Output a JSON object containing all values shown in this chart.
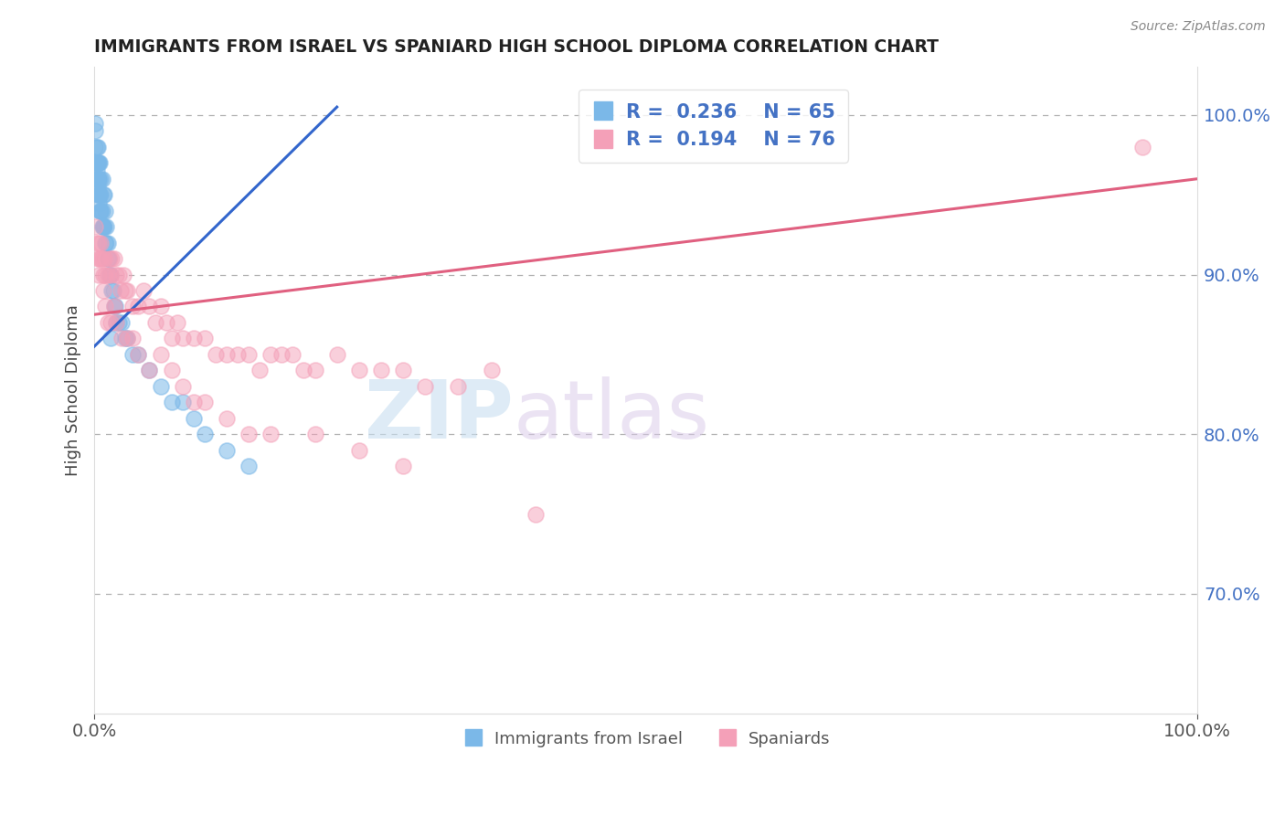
{
  "title": "IMMIGRANTS FROM ISRAEL VS SPANIARD HIGH SCHOOL DIPLOMA CORRELATION CHART",
  "source_text": "Source: ZipAtlas.com",
  "ylabel": "High School Diploma",
  "xlabel": "",
  "legend_label1": "Immigrants from Israel",
  "legend_label2": "Spaniards",
  "R1": 0.236,
  "N1": 65,
  "R2": 0.194,
  "N2": 76,
  "color_blue": "#7bb8e8",
  "color_pink": "#f4a0b8",
  "color_blue_line": "#3366cc",
  "color_pink_line": "#e06080",
  "watermark_zip": "ZIP",
  "watermark_atlas": "atlas",
  "xlim": [
    0.0,
    1.0
  ],
  "ylim": [
    0.625,
    1.03
  ],
  "right_yticks": [
    0.7,
    0.8,
    0.9,
    1.0
  ],
  "right_yticklabels": [
    "70.0%",
    "80.0%",
    "90.0%",
    "100.0%"
  ],
  "xticks": [
    0.0,
    1.0
  ],
  "xticklabels": [
    "0.0%",
    "100.0%"
  ],
  "blue_x": [
    0.001,
    0.001,
    0.001,
    0.002,
    0.002,
    0.002,
    0.003,
    0.003,
    0.003,
    0.003,
    0.004,
    0.004,
    0.004,
    0.005,
    0.005,
    0.005,
    0.006,
    0.006,
    0.006,
    0.007,
    0.007,
    0.007,
    0.008,
    0.008,
    0.009,
    0.009,
    0.01,
    0.01,
    0.011,
    0.011,
    0.012,
    0.013,
    0.014,
    0.015,
    0.016,
    0.017,
    0.018,
    0.019,
    0.02,
    0.022,
    0.025,
    0.028,
    0.03,
    0.035,
    0.04,
    0.05,
    0.06,
    0.07,
    0.08,
    0.09,
    0.1,
    0.12,
    0.14,
    0.015,
    0.012,
    0.008,
    0.006,
    0.004,
    0.003,
    0.002,
    0.001,
    0.001,
    0.002,
    0.003,
    0.004
  ],
  "blue_y": [
    0.96,
    0.97,
    0.98,
    0.96,
    0.97,
    0.98,
    0.95,
    0.96,
    0.97,
    0.98,
    0.95,
    0.96,
    0.97,
    0.94,
    0.95,
    0.97,
    0.94,
    0.95,
    0.96,
    0.93,
    0.94,
    0.96,
    0.93,
    0.95,
    0.93,
    0.95,
    0.92,
    0.94,
    0.92,
    0.93,
    0.91,
    0.91,
    0.9,
    0.9,
    0.89,
    0.89,
    0.88,
    0.88,
    0.87,
    0.87,
    0.87,
    0.86,
    0.86,
    0.85,
    0.85,
    0.84,
    0.83,
    0.82,
    0.82,
    0.81,
    0.8,
    0.79,
    0.78,
    0.86,
    0.92,
    0.93,
    0.94,
    0.96,
    0.97,
    0.97,
    0.99,
    0.995,
    0.965,
    0.955,
    0.945
  ],
  "pink_x": [
    0.001,
    0.002,
    0.003,
    0.004,
    0.005,
    0.006,
    0.007,
    0.008,
    0.009,
    0.01,
    0.012,
    0.014,
    0.015,
    0.016,
    0.018,
    0.02,
    0.022,
    0.024,
    0.026,
    0.028,
    0.03,
    0.035,
    0.04,
    0.045,
    0.05,
    0.055,
    0.06,
    0.065,
    0.07,
    0.075,
    0.08,
    0.09,
    0.1,
    0.11,
    0.12,
    0.13,
    0.14,
    0.15,
    0.16,
    0.17,
    0.18,
    0.19,
    0.2,
    0.22,
    0.24,
    0.26,
    0.28,
    0.3,
    0.33,
    0.36,
    0.004,
    0.006,
    0.008,
    0.01,
    0.012,
    0.015,
    0.018,
    0.02,
    0.025,
    0.03,
    0.035,
    0.04,
    0.05,
    0.06,
    0.07,
    0.08,
    0.09,
    0.1,
    0.12,
    0.14,
    0.16,
    0.2,
    0.24,
    0.28,
    0.4,
    0.95
  ],
  "pink_y": [
    0.93,
    0.92,
    0.91,
    0.92,
    0.91,
    0.92,
    0.91,
    0.9,
    0.91,
    0.9,
    0.9,
    0.91,
    0.9,
    0.91,
    0.91,
    0.9,
    0.9,
    0.89,
    0.9,
    0.89,
    0.89,
    0.88,
    0.88,
    0.89,
    0.88,
    0.87,
    0.88,
    0.87,
    0.86,
    0.87,
    0.86,
    0.86,
    0.86,
    0.85,
    0.85,
    0.85,
    0.85,
    0.84,
    0.85,
    0.85,
    0.85,
    0.84,
    0.84,
    0.85,
    0.84,
    0.84,
    0.84,
    0.83,
    0.83,
    0.84,
    0.9,
    0.91,
    0.89,
    0.88,
    0.87,
    0.87,
    0.88,
    0.87,
    0.86,
    0.86,
    0.86,
    0.85,
    0.84,
    0.85,
    0.84,
    0.83,
    0.82,
    0.82,
    0.81,
    0.8,
    0.8,
    0.8,
    0.79,
    0.78,
    0.75,
    0.98
  ],
  "blue_trend_x0": 0.0,
  "blue_trend_y0": 0.855,
  "blue_trend_x1": 0.22,
  "blue_trend_y1": 1.005,
  "pink_trend_x0": 0.0,
  "pink_trend_y0": 0.875,
  "pink_trend_x1": 1.0,
  "pink_trend_y1": 0.96
}
